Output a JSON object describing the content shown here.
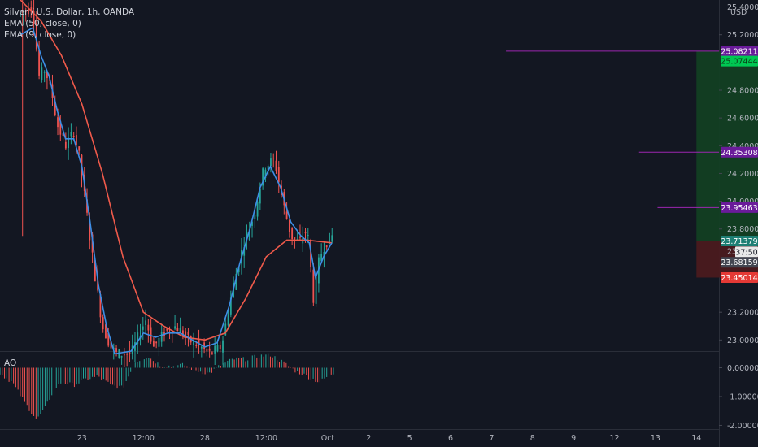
{
  "legend": {
    "title": "Silver / U.S. Dollar, 1h, OANDA",
    "ema50": "EMA (50, close, 0)",
    "ema9": "EMA (9, close, 0)"
  },
  "ao_label": "AO",
  "currency": "USD",
  "colors": {
    "background": "#131722",
    "bull": "#26a69a",
    "bear": "#ef5350",
    "ema50": "#f05a4b",
    "ema9": "#3d8ee6",
    "level_line": "#9c27b0",
    "profit_zone": "#123f23",
    "loss_zone": "#4a1a1f"
  },
  "price_axis": {
    "ticks": [
      "25.40000",
      "25.20000",
      "24.80000",
      "24.60000",
      "24.40000",
      "24.20000",
      "24.00000",
      "23.80000",
      "23.20000",
      "23.00000"
    ],
    "tick_values": [
      25.4,
      25.2,
      24.8,
      24.6,
      24.4,
      24.2,
      24.0,
      23.8,
      23.2,
      23.0
    ],
    "partial_ticks": [
      "23.6"
    ],
    "partial_values": [
      23.64
    ]
  },
  "price_badges": [
    {
      "label": "25.08211",
      "value": 25.08211,
      "bg": "#6a1b9a",
      "fg": "#ffffff"
    },
    {
      "label": "25.07444",
      "value": 25.01,
      "bg": "#00c853",
      "fg": "#0b3a16"
    },
    {
      "label": "24.35308",
      "value": 24.35308,
      "bg": "#6a1b9a",
      "fg": "#ffffff"
    },
    {
      "label": "23.95463",
      "value": 23.95463,
      "bg": "#6a1b9a",
      "fg": "#ffffff"
    },
    {
      "label": "23.71379",
      "value": 23.71379,
      "bg": "#1e7f74",
      "fg": "#ffffff"
    },
    {
      "label": "37:50",
      "value": 23.635,
      "bg": "#e8e8e8",
      "fg": "#131722",
      "small": true
    },
    {
      "label": "23.68159",
      "value": 23.56,
      "bg": "#434651",
      "fg": "#ffffff"
    },
    {
      "label": "23.45014",
      "value": 23.45014,
      "bg": "#e53935",
      "fg": "#ffffff"
    }
  ],
  "levels": [
    {
      "value": 25.08211,
      "start_day": 12.35
    },
    {
      "value": 24.35308,
      "start_day": 15.6
    },
    {
      "value": 23.95463,
      "start_day": 16.05
    }
  ],
  "position": {
    "entry": 23.71379,
    "target": 25.08211,
    "stop": 23.45014,
    "start_day": 17.0,
    "end_day": 23.2
  },
  "ao_axis": {
    "ticks": [
      "0.00000",
      "-1.00000",
      "-2.00000"
    ],
    "tick_values": [
      0,
      -1,
      -2
    ]
  },
  "time_axis": {
    "labels": [
      "23",
      "12:00",
      "28",
      "12:00",
      "Oct",
      "2",
      "5",
      "6",
      "7",
      "8",
      "9",
      "12",
      "13",
      "14"
    ],
    "days": [
      2.0,
      3.5,
      5.0,
      6.5,
      8.0,
      9.0,
      10.0,
      11.0,
      12.0,
      13.0,
      14.0,
      15.0,
      16.0,
      17.0
    ]
  },
  "chart_data": {
    "type": "candlestick",
    "symbol": "Silver / U.S. Dollar, 1h, OANDA",
    "close_path": [
      [
        0.5,
        25.35
      ],
      [
        0.8,
        25.4
      ],
      [
        0.95,
        24.9
      ],
      [
        1.1,
        24.95
      ],
      [
        1.25,
        24.8
      ],
      [
        1.4,
        24.55
      ],
      [
        1.6,
        24.4
      ],
      [
        1.8,
        24.5
      ],
      [
        1.95,
        24.3
      ],
      [
        2.1,
        23.95
      ],
      [
        2.3,
        23.5
      ],
      [
        2.5,
        23.1
      ],
      [
        2.7,
        22.95
      ],
      [
        2.85,
        22.9
      ],
      [
        3.2,
        22.9
      ],
      [
        3.55,
        23.15
      ],
      [
        3.75,
        22.95
      ],
      [
        4.0,
        23.05
      ],
      [
        4.3,
        23.1
      ],
      [
        4.6,
        23.0
      ],
      [
        4.9,
        22.95
      ],
      [
        5.1,
        22.9
      ],
      [
        5.4,
        22.95
      ],
      [
        5.7,
        23.4
      ],
      [
        5.95,
        23.7
      ],
      [
        6.2,
        23.9
      ],
      [
        6.45,
        24.25
      ],
      [
        6.7,
        24.3
      ],
      [
        6.9,
        24.0
      ],
      [
        7.1,
        23.75
      ],
      [
        7.3,
        23.7
      ],
      [
        7.5,
        23.8
      ],
      [
        7.65,
        23.3
      ],
      [
        7.8,
        23.6
      ],
      [
        7.95,
        23.7
      ],
      [
        8.1,
        23.75
      ]
    ],
    "ema9_path": [
      [
        0.5,
        25.2
      ],
      [
        0.8,
        25.25
      ],
      [
        1.0,
        25.05
      ],
      [
        1.2,
        24.9
      ],
      [
        1.4,
        24.65
      ],
      [
        1.6,
        24.45
      ],
      [
        1.8,
        24.45
      ],
      [
        2.0,
        24.25
      ],
      [
        2.2,
        23.85
      ],
      [
        2.4,
        23.4
      ],
      [
        2.6,
        23.1
      ],
      [
        2.8,
        22.9
      ],
      [
        3.2,
        22.92
      ],
      [
        3.5,
        23.05
      ],
      [
        3.8,
        23.02
      ],
      [
        4.1,
        23.05
      ],
      [
        4.4,
        23.05
      ],
      [
        4.7,
        23.0
      ],
      [
        5.0,
        22.95
      ],
      [
        5.3,
        22.98
      ],
      [
        5.6,
        23.25
      ],
      [
        5.85,
        23.55
      ],
      [
        6.1,
        23.8
      ],
      [
        6.35,
        24.1
      ],
      [
        6.6,
        24.25
      ],
      [
        6.85,
        24.1
      ],
      [
        7.1,
        23.85
      ],
      [
        7.35,
        23.75
      ],
      [
        7.55,
        23.7
      ],
      [
        7.7,
        23.45
      ],
      [
        7.9,
        23.6
      ],
      [
        8.1,
        23.7
      ]
    ],
    "ema50_path": [
      [
        0.5,
        25.45
      ],
      [
        1.0,
        25.3
      ],
      [
        1.5,
        25.05
      ],
      [
        2.0,
        24.7
      ],
      [
        2.5,
        24.2
      ],
      [
        3.0,
        23.6
      ],
      [
        3.5,
        23.2
      ],
      [
        4.0,
        23.1
      ],
      [
        4.5,
        23.02
      ],
      [
        5.0,
        23.0
      ],
      [
        5.5,
        23.05
      ],
      [
        6.0,
        23.3
      ],
      [
        6.5,
        23.6
      ],
      [
        7.0,
        23.72
      ],
      [
        7.5,
        23.72
      ],
      [
        8.1,
        23.7
      ]
    ],
    "ao_path": [
      [
        0.0,
        -0.2
      ],
      [
        0.3,
        -0.5
      ],
      [
        0.6,
        -1.2
      ],
      [
        0.9,
        -1.8
      ],
      [
        1.1,
        -1.4
      ],
      [
        1.3,
        -0.8
      ],
      [
        1.5,
        -0.5
      ],
      [
        1.8,
        -0.6
      ],
      [
        2.1,
        -0.4
      ],
      [
        2.4,
        -0.3
      ],
      [
        2.7,
        -0.6
      ],
      [
        3.0,
        -0.7
      ],
      [
        3.3,
        0.2
      ],
      [
        3.6,
        0.4
      ],
      [
        3.9,
        0.1
      ],
      [
        4.2,
        0.05
      ],
      [
        4.5,
        0.1
      ],
      [
        4.8,
        -0.1
      ],
      [
        5.1,
        -0.2
      ],
      [
        5.4,
        0.1
      ],
      [
        5.7,
        0.3
      ],
      [
        6.0,
        0.3
      ],
      [
        6.3,
        0.4
      ],
      [
        6.6,
        0.45
      ],
      [
        6.9,
        0.2
      ],
      [
        7.2,
        -0.1
      ],
      [
        7.5,
        -0.3
      ],
      [
        7.8,
        -0.5
      ],
      [
        8.1,
        -0.2
      ]
    ],
    "price_range": [
      22.92,
      25.45
    ],
    "ao_range": [
      -2.1,
      0.55
    ],
    "day_range": [
      0.0,
      17.55
    ]
  }
}
